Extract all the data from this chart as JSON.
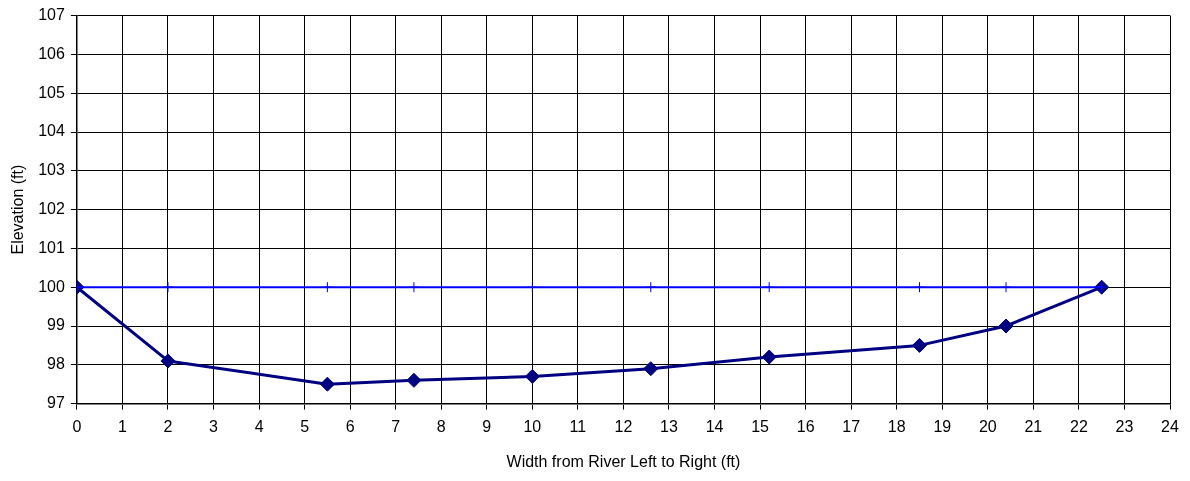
{
  "chart_data": {
    "type": "line",
    "xlabel": "Width from River Left to Right (ft)",
    "ylabel": "Elevation (ft)",
    "x": [
      0,
      2,
      5.5,
      7.4,
      10,
      12.6,
      15.2,
      18.5,
      20.4,
      22.5
    ],
    "series": [
      {
        "color": "#0000ff",
        "marker": "cross",
        "values": [
          100,
          100,
          100,
          100,
          100,
          100,
          100,
          100,
          100,
          100
        ]
      },
      {
        "color": "#000080",
        "marker": "diamond",
        "values": [
          100,
          98.1,
          97.5,
          97.6,
          97.7,
          97.9,
          98.2,
          98.5,
          99.0,
          100
        ]
      }
    ],
    "xlim": [
      0,
      24
    ],
    "xticks": [
      0,
      1,
      2,
      3,
      4,
      5,
      6,
      7,
      8,
      9,
      10,
      11,
      12,
      13,
      14,
      15,
      16,
      17,
      18,
      19,
      20,
      21,
      22,
      23,
      24
    ],
    "ylim": [
      97,
      107
    ],
    "yticks": [
      97,
      98,
      99,
      100,
      101,
      102,
      103,
      104,
      105,
      106,
      107
    ],
    "grid": true,
    "legend": false
  }
}
